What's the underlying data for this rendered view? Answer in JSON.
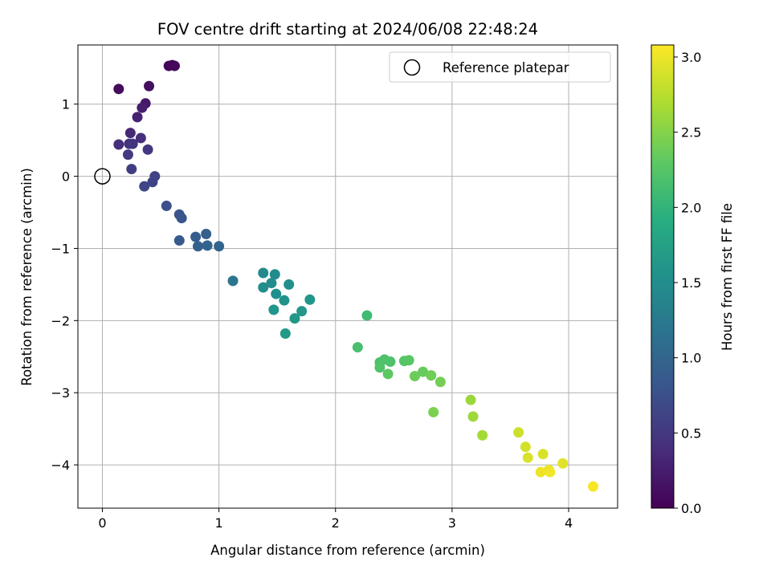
{
  "chart_data": {
    "type": "scatter",
    "title": "FOV centre drift starting at 2024/06/08 22:48:24",
    "xlabel": "Angular distance from reference (arcmin)",
    "ylabel": "Rotation from reference (arcmin)",
    "xlim": [
      -0.21,
      4.42
    ],
    "ylim": [
      -4.6,
      1.82
    ],
    "xticks": [
      0,
      1,
      2,
      3,
      4
    ],
    "yticks": [
      1,
      0,
      -1,
      -2,
      -3,
      -4
    ],
    "xtick_labels": [
      "0",
      "1",
      "2",
      "3",
      "4"
    ],
    "ytick_labels": [
      "1",
      "0",
      "−1",
      "−2",
      "−3",
      "−4"
    ],
    "grid": true,
    "legend": {
      "position": "top-right",
      "entries": [
        "Reference platepar"
      ]
    },
    "reference_point": {
      "x": 0,
      "y": 0,
      "marker": "open-circle"
    },
    "colorbar": {
      "label": "Hours from first FF file",
      "range": [
        0.0,
        3.08
      ],
      "ticks": [
        0.0,
        0.5,
        1.0,
        1.5,
        2.0,
        2.5,
        3.0
      ],
      "tick_labels": [
        "0.0",
        "0.5",
        "1.0",
        "1.5",
        "2.0",
        "2.5",
        "3.0"
      ],
      "colormap": "viridis"
    },
    "series": [
      {
        "x": [
          0.57,
          0.6,
          0.62,
          0.14,
          0.4,
          0.37,
          0.34,
          0.3,
          0.24,
          0.33,
          0.14,
          0.23,
          0.26,
          0.39,
          0.22,
          0.25,
          0.45,
          0.43,
          0.36,
          0.55,
          0.66,
          0.68,
          0.66,
          0.8,
          0.89,
          0.82,
          0.9,
          1.0,
          1.12,
          1.38,
          1.48,
          1.45,
          1.38,
          1.6,
          1.49,
          1.56,
          1.78,
          1.47,
          1.71,
          1.65,
          1.57,
          2.27,
          2.19,
          2.38,
          2.42,
          2.47,
          2.38,
          2.59,
          2.63,
          2.45,
          2.75,
          2.68,
          2.82,
          2.9,
          2.84,
          3.16,
          3.18,
          3.26,
          3.57,
          3.63,
          3.78,
          3.65,
          3.95,
          3.83,
          3.76,
          3.84,
          4.21
        ],
        "y": [
          1.53,
          1.54,
          1.53,
          1.21,
          1.25,
          1.01,
          0.95,
          0.82,
          0.6,
          0.53,
          0.44,
          0.45,
          0.45,
          0.37,
          0.3,
          0.1,
          0.0,
          -0.08,
          -0.14,
          -0.41,
          -0.53,
          -0.58,
          -0.89,
          -0.84,
          -0.8,
          -0.97,
          -0.96,
          -0.97,
          -1.45,
          -1.34,
          -1.36,
          -1.48,
          -1.54,
          -1.5,
          -1.63,
          -1.72,
          -1.71,
          -1.85,
          -1.87,
          -1.97,
          -2.18,
          -1.93,
          -2.37,
          -2.58,
          -2.54,
          -2.57,
          -2.65,
          -2.56,
          -2.55,
          -2.74,
          -2.71,
          -2.77,
          -2.76,
          -2.85,
          -3.27,
          -3.1,
          -3.33,
          -3.59,
          -3.55,
          -3.75,
          -3.85,
          -3.9,
          -3.98,
          -4.07,
          -4.1,
          -4.1,
          -4.3
        ],
        "hours": [
          0.03,
          0.04,
          0.05,
          0.1,
          0.12,
          0.2,
          0.25,
          0.3,
          0.35,
          0.4,
          0.42,
          0.45,
          0.47,
          0.5,
          0.52,
          0.55,
          0.6,
          0.62,
          0.65,
          0.75,
          0.8,
          0.82,
          0.85,
          0.9,
          0.93,
          0.95,
          0.97,
          1.0,
          1.2,
          1.45,
          1.47,
          1.48,
          1.5,
          1.52,
          1.53,
          1.55,
          1.6,
          1.6,
          1.62,
          1.63,
          1.65,
          2.1,
          2.15,
          2.18,
          2.2,
          2.2,
          2.22,
          2.25,
          2.27,
          2.3,
          2.35,
          2.38,
          2.4,
          2.42,
          2.45,
          2.6,
          2.62,
          2.65,
          2.85,
          2.88,
          2.9,
          2.9,
          2.95,
          2.98,
          3.0,
          3.02,
          3.05
        ]
      }
    ]
  }
}
